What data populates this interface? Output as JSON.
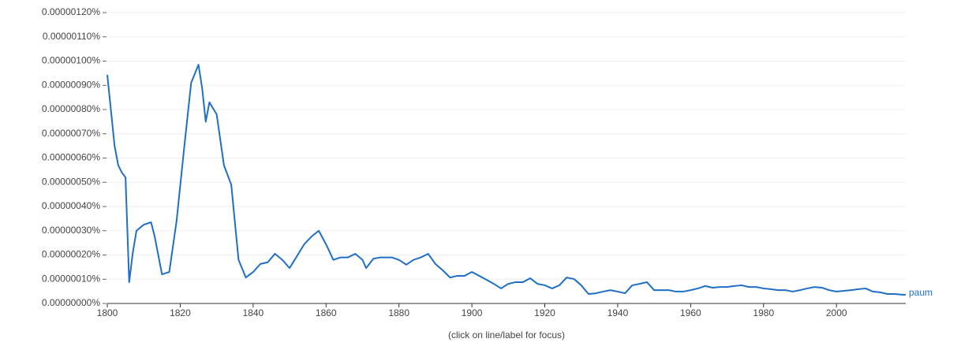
{
  "chart_data": {
    "type": "line",
    "note": "(click on line/label for focus)",
    "x": [
      1800,
      1802,
      1803,
      1804,
      1805,
      1806,
      1807,
      1808,
      1810,
      1812,
      1813,
      1815,
      1817,
      1819,
      1821,
      1823,
      1825,
      1826,
      1827,
      1828,
      1830,
      1832,
      1834,
      1836,
      1838,
      1840,
      1842,
      1844,
      1846,
      1848,
      1850,
      1852,
      1854,
      1856,
      1858,
      1860,
      1862,
      1864,
      1866,
      1868,
      1870,
      1871,
      1873,
      1875,
      1878,
      1880,
      1882,
      1884,
      1886,
      1888,
      1890,
      1892,
      1894,
      1896,
      1898,
      1900,
      1902,
      1904,
      1906,
      1908,
      1910,
      1912,
      1914,
      1916,
      1918,
      1920,
      1922,
      1924,
      1926,
      1928,
      1930,
      1932,
      1934,
      1936,
      1938,
      1940,
      1942,
      1944,
      1946,
      1948,
      1950,
      1952,
      1954,
      1956,
      1958,
      1960,
      1962,
      1964,
      1966,
      1968,
      1970,
      1972,
      1974,
      1976,
      1978,
      1980,
      1982,
      1984,
      1986,
      1988,
      1990,
      1992,
      1994,
      1996,
      1998,
      2000,
      2002,
      2004,
      2006,
      2008,
      2010,
      2012,
      2014,
      2016,
      2018,
      2019
    ],
    "series": [
      {
        "name": "paum",
        "color": "#1f6fc5",
        "values": [
          9.43e-07,
          6.5e-07,
          5.7e-07,
          5.4e-07,
          5.2e-07,
          8.8e-08,
          2.1e-07,
          3e-07,
          3.25e-07,
          3.35e-07,
          2.76e-07,
          1.2e-07,
          1.3e-07,
          3.4e-07,
          6.3e-07,
          9.1e-07,
          9.85e-07,
          8.9e-07,
          7.5e-07,
          8.3e-07,
          7.8e-07,
          5.7e-07,
          4.9e-07,
          1.8e-07,
          1.07e-07,
          1.3e-07,
          1.63e-07,
          1.7e-07,
          2.05e-07,
          1.8e-07,
          1.46e-07,
          1.95e-07,
          2.44e-07,
          2.76e-07,
          3e-07,
          2.44e-07,
          1.8e-07,
          1.9e-07,
          1.9e-07,
          2.05e-07,
          1.8e-07,
          1.46e-07,
          1.85e-07,
          1.9e-07,
          1.9e-07,
          1.8e-07,
          1.6e-07,
          1.8e-07,
          1.9e-07,
          2.05e-07,
          1.63e-07,
          1.37e-07,
          1.07e-07,
          1.14e-07,
          1.14e-07,
          1.3e-07,
          1.14e-07,
          9.8e-08,
          8.1e-08,
          6.2e-08,
          8.1e-08,
          8.8e-08,
          8.8e-08,
          1.04e-07,
          8.1e-08,
          7.5e-08,
          6.2e-08,
          7.5e-08,
          1.07e-07,
          1.01e-07,
          7.5e-08,
          3.9e-08,
          4.2e-08,
          4.9e-08,
          5.5e-08,
          4.9e-08,
          4.2e-08,
          7.5e-08,
          8.1e-08,
          8.8e-08,
          5.5e-08,
          5.5e-08,
          5.5e-08,
          4.9e-08,
          4.9e-08,
          5.5e-08,
          6.2e-08,
          7.2e-08,
          6.5e-08,
          6.8e-08,
          6.8e-08,
          7.2e-08,
          7.5e-08,
          6.8e-08,
          6.8e-08,
          6.2e-08,
          5.9e-08,
          5.5e-08,
          5.5e-08,
          4.9e-08,
          5.5e-08,
          6.2e-08,
          6.8e-08,
          6.5e-08,
          5.5e-08,
          4.9e-08,
          5.2e-08,
          5.5e-08,
          5.9e-08,
          6.2e-08,
          4.9e-08,
          4.6e-08,
          3.9e-08,
          3.9e-08,
          3.6e-08,
          3.6e-08
        ]
      }
    ],
    "xlim": [
      1800,
      2019
    ],
    "xticks": [
      1800,
      1820,
      1840,
      1860,
      1880,
      1900,
      1920,
      1940,
      1960,
      1980,
      2000
    ],
    "ylim": [
      0,
      1.2e-06
    ],
    "yticks": [
      {
        "value": 0,
        "label": "0.00000000%"
      },
      {
        "value": 1e-07,
        "label": "0.00000010%"
      },
      {
        "value": 2e-07,
        "label": "0.00000020%"
      },
      {
        "value": 3e-07,
        "label": "0.00000030%"
      },
      {
        "value": 4e-07,
        "label": "0.00000040%"
      },
      {
        "value": 5e-07,
        "label": "0.00000050%"
      },
      {
        "value": 6e-07,
        "label": "0.00000060%"
      },
      {
        "value": 7e-07,
        "label": "0.00000070%"
      },
      {
        "value": 8e-07,
        "label": "0.00000080%"
      },
      {
        "value": 9e-07,
        "label": "0.00000090%"
      },
      {
        "value": 1e-06,
        "label": "0.00000100%"
      },
      {
        "value": 1.1e-06,
        "label": "0.00000110%"
      },
      {
        "value": 1.2e-06,
        "label": "0.00000120%"
      }
    ],
    "grid": true
  }
}
